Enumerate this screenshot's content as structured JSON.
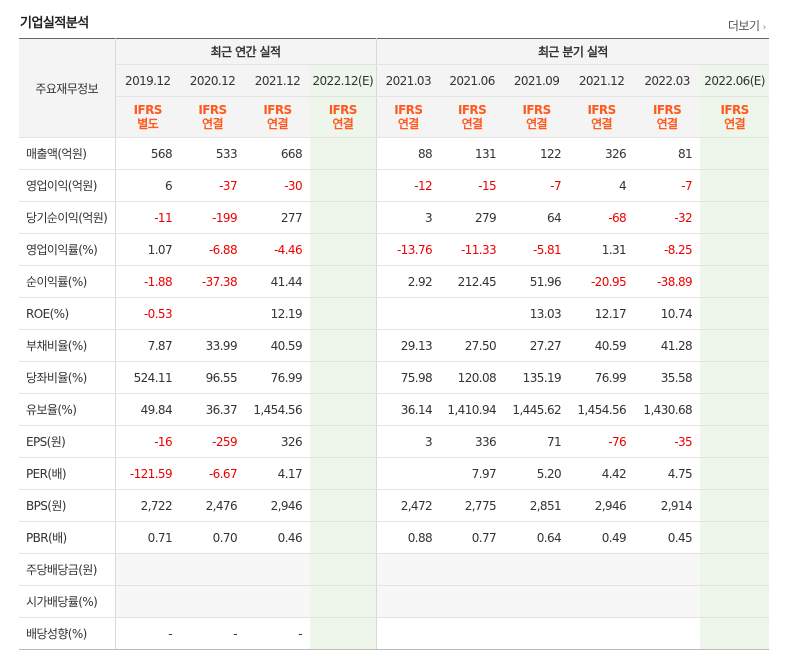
{
  "header": {
    "title": "기업실적분석",
    "more_label": "더보기",
    "more_chevron": "›"
  },
  "table": {
    "corner_label": "주요재무정보",
    "group_annual": "최근 연간 실적",
    "group_quarterly": "최근 분기 실적",
    "periods": [
      "2019.12",
      "2020.12",
      "2021.12",
      "2022.12(E)",
      "2021.03",
      "2021.06",
      "2021.09",
      "2021.12",
      "2022.03",
      "2022.06(E)"
    ],
    "ifrs_top": [
      "IFRS",
      "IFRS",
      "IFRS",
      "IFRS",
      "IFRS",
      "IFRS",
      "IFRS",
      "IFRS",
      "IFRS",
      "IFRS"
    ],
    "ifrs_bottom": [
      "별도",
      "연결",
      "연결",
      "연결",
      "연결",
      "연결",
      "연결",
      "연결",
      "연결",
      "연결"
    ],
    "rows": [
      {
        "label": "매출액(억원)",
        "values": [
          "568",
          "533",
          "668",
          "",
          "88",
          "131",
          "122",
          "326",
          "81",
          ""
        ]
      },
      {
        "label": "영업이익(억원)",
        "values": [
          "6",
          "-37",
          "-30",
          "",
          "-12",
          "-15",
          "-7",
          "4",
          "-7",
          ""
        ]
      },
      {
        "label": "당기순이익(억원)",
        "values": [
          "-11",
          "-199",
          "277",
          "",
          "3",
          "279",
          "64",
          "-68",
          "-32",
          ""
        ]
      },
      {
        "label": "영업이익률(%)",
        "values": [
          "1.07",
          "-6.88",
          "-4.46",
          "",
          "-13.76",
          "-11.33",
          "-5.81",
          "1.31",
          "-8.25",
          ""
        ]
      },
      {
        "label": "순이익률(%)",
        "values": [
          "-1.88",
          "-37.38",
          "41.44",
          "",
          "2.92",
          "212.45",
          "51.96",
          "-20.95",
          "-38.89",
          ""
        ]
      },
      {
        "label": "ROE(%)",
        "values": [
          "-0.53",
          "",
          "12.19",
          "",
          "",
          "",
          "13.03",
          "12.17",
          "10.74",
          ""
        ]
      },
      {
        "label": "부채비율(%)",
        "values": [
          "7.87",
          "33.99",
          "40.59",
          "",
          "29.13",
          "27.50",
          "27.27",
          "40.59",
          "41.28",
          ""
        ]
      },
      {
        "label": "당좌비율(%)",
        "values": [
          "524.11",
          "96.55",
          "76.99",
          "",
          "75.98",
          "120.08",
          "135.19",
          "76.99",
          "35.58",
          ""
        ]
      },
      {
        "label": "유보율(%)",
        "values": [
          "49.84",
          "36.37",
          "1,454.56",
          "",
          "36.14",
          "1,410.94",
          "1,445.62",
          "1,454.56",
          "1,430.68",
          ""
        ]
      },
      {
        "label": "EPS(원)",
        "values": [
          "-16",
          "-259",
          "326",
          "",
          "3",
          "336",
          "71",
          "-76",
          "-35",
          ""
        ]
      },
      {
        "label": "PER(배)",
        "values": [
          "-121.59",
          "-6.67",
          "4.17",
          "",
          "",
          "7.97",
          "5.20",
          "4.42",
          "4.75",
          ""
        ]
      },
      {
        "label": "BPS(원)",
        "values": [
          "2,722",
          "2,476",
          "2,946",
          "",
          "2,472",
          "2,775",
          "2,851",
          "2,946",
          "2,914",
          ""
        ]
      },
      {
        "label": "PBR(배)",
        "values": [
          "0.71",
          "0.70",
          "0.46",
          "",
          "0.88",
          "0.77",
          "0.64",
          "0.49",
          "0.45",
          ""
        ]
      },
      {
        "label": "주당배당금(원)",
        "values": [
          "",
          "",
          "",
          "",
          "",
          "",
          "",
          "",
          "",
          ""
        ]
      },
      {
        "label": "시가배당률(%)",
        "values": [
          "",
          "",
          "",
          "",
          "",
          "",
          "",
          "",
          "",
          ""
        ]
      },
      {
        "label": "배당성향(%)",
        "values": [
          "-",
          "-",
          "-",
          "",
          "",
          "",
          "",
          "",
          "",
          ""
        ]
      }
    ]
  },
  "colors": {
    "negative": "#ee0000",
    "ifrs": "#ff5a1e",
    "estimate_bg": "#eef5ea",
    "header_bg": "#f4f4f4"
  }
}
